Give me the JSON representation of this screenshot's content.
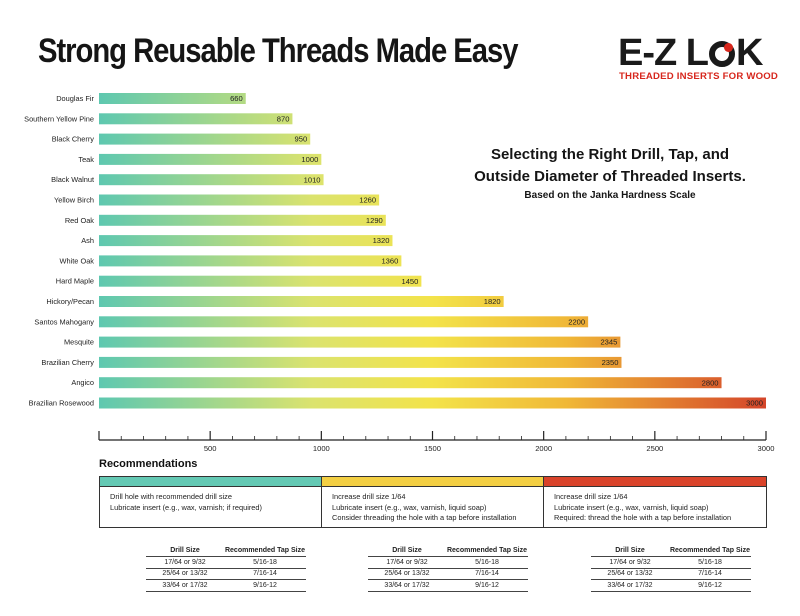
{
  "header": {
    "title": "Strong Reusable Threads Made Easy",
    "logo_text": "E-Z LOK",
    "logo_tagline": "THREADED INSERTS FOR WOOD"
  },
  "side_heading": {
    "line1": "Selecting the Right Drill, Tap, and",
    "line2": "Outside Diameter of Threaded Inserts.",
    "line3": "Based on the Janka Hardness Scale"
  },
  "chart_data": {
    "type": "bar",
    "orientation": "horizontal",
    "categories": [
      "Douglas Fir",
      "Southern Yellow Pine",
      "Black Cherry",
      "Teak",
      "Black Walnut",
      "Yellow Birch",
      "Red Oak",
      "Ash",
      "White Oak",
      "Hard Maple",
      "Hickory/Pecan",
      "Santos Mahogany",
      "Mesquite",
      "Brazilian Cherry",
      "Angico",
      "Brazilian Rosewood"
    ],
    "values": [
      660,
      870,
      950,
      1000,
      1010,
      1260,
      1290,
      1320,
      1360,
      1450,
      1820,
      2200,
      2345,
      2350,
      2800,
      3000
    ],
    "xlim": [
      0,
      3000
    ],
    "xticks": [
      500,
      1000,
      1500,
      2000,
      2500,
      3000
    ],
    "gradient_colors": [
      "#5ec8b0",
      "#e6e34a",
      "#f0c13a",
      "#d74a2a"
    ],
    "data_labels": true,
    "grid": false
  },
  "recommendations": {
    "title": "Recommendations",
    "columns": [
      {
        "band_color": "#64c9b4",
        "lines": [
          "Drill hole with recommended drill size",
          "Lubricate insert (e.g., wax, varnish; if required)"
        ]
      },
      {
        "band_color": "#f3cf43",
        "lines": [
          "Increase drill size 1/64",
          "Lubricate insert (e.g., wax, varnish, liquid soap)",
          "Consider threading the hole with a tap before installation"
        ]
      },
      {
        "band_color": "#d9432a",
        "lines": [
          "Increase drill size 1/64",
          "Lubricate insert (e.g., wax, varnish, liquid soap)",
          "Required: thread the hole with a tap before installation"
        ]
      }
    ]
  },
  "tap_tables": [
    {
      "header": [
        "Drill Size",
        "Recommended Tap Size"
      ],
      "rows": [
        [
          "17/64 or 9/32",
          "5/16-18"
        ],
        [
          "25/64 or 13/32",
          "7/16-14"
        ],
        [
          "33/64 or 17/32",
          "9/16-12"
        ]
      ]
    },
    {
      "header": [
        "Drill Size",
        "Recommended Tap Size"
      ],
      "rows": [
        [
          "17/64 or 9/32",
          "5/16-18"
        ],
        [
          "25/64 or 13/32",
          "7/16-14"
        ],
        [
          "33/64 or 17/32",
          "9/16-12"
        ]
      ]
    },
    {
      "header": [
        "Drill Size",
        "Recommended Tap Size"
      ],
      "rows": [
        [
          "17/64 or 9/32",
          "5/16-18"
        ],
        [
          "25/64 or 13/32",
          "7/16-14"
        ],
        [
          "33/64 or 17/32",
          "9/16-12"
        ]
      ]
    }
  ]
}
